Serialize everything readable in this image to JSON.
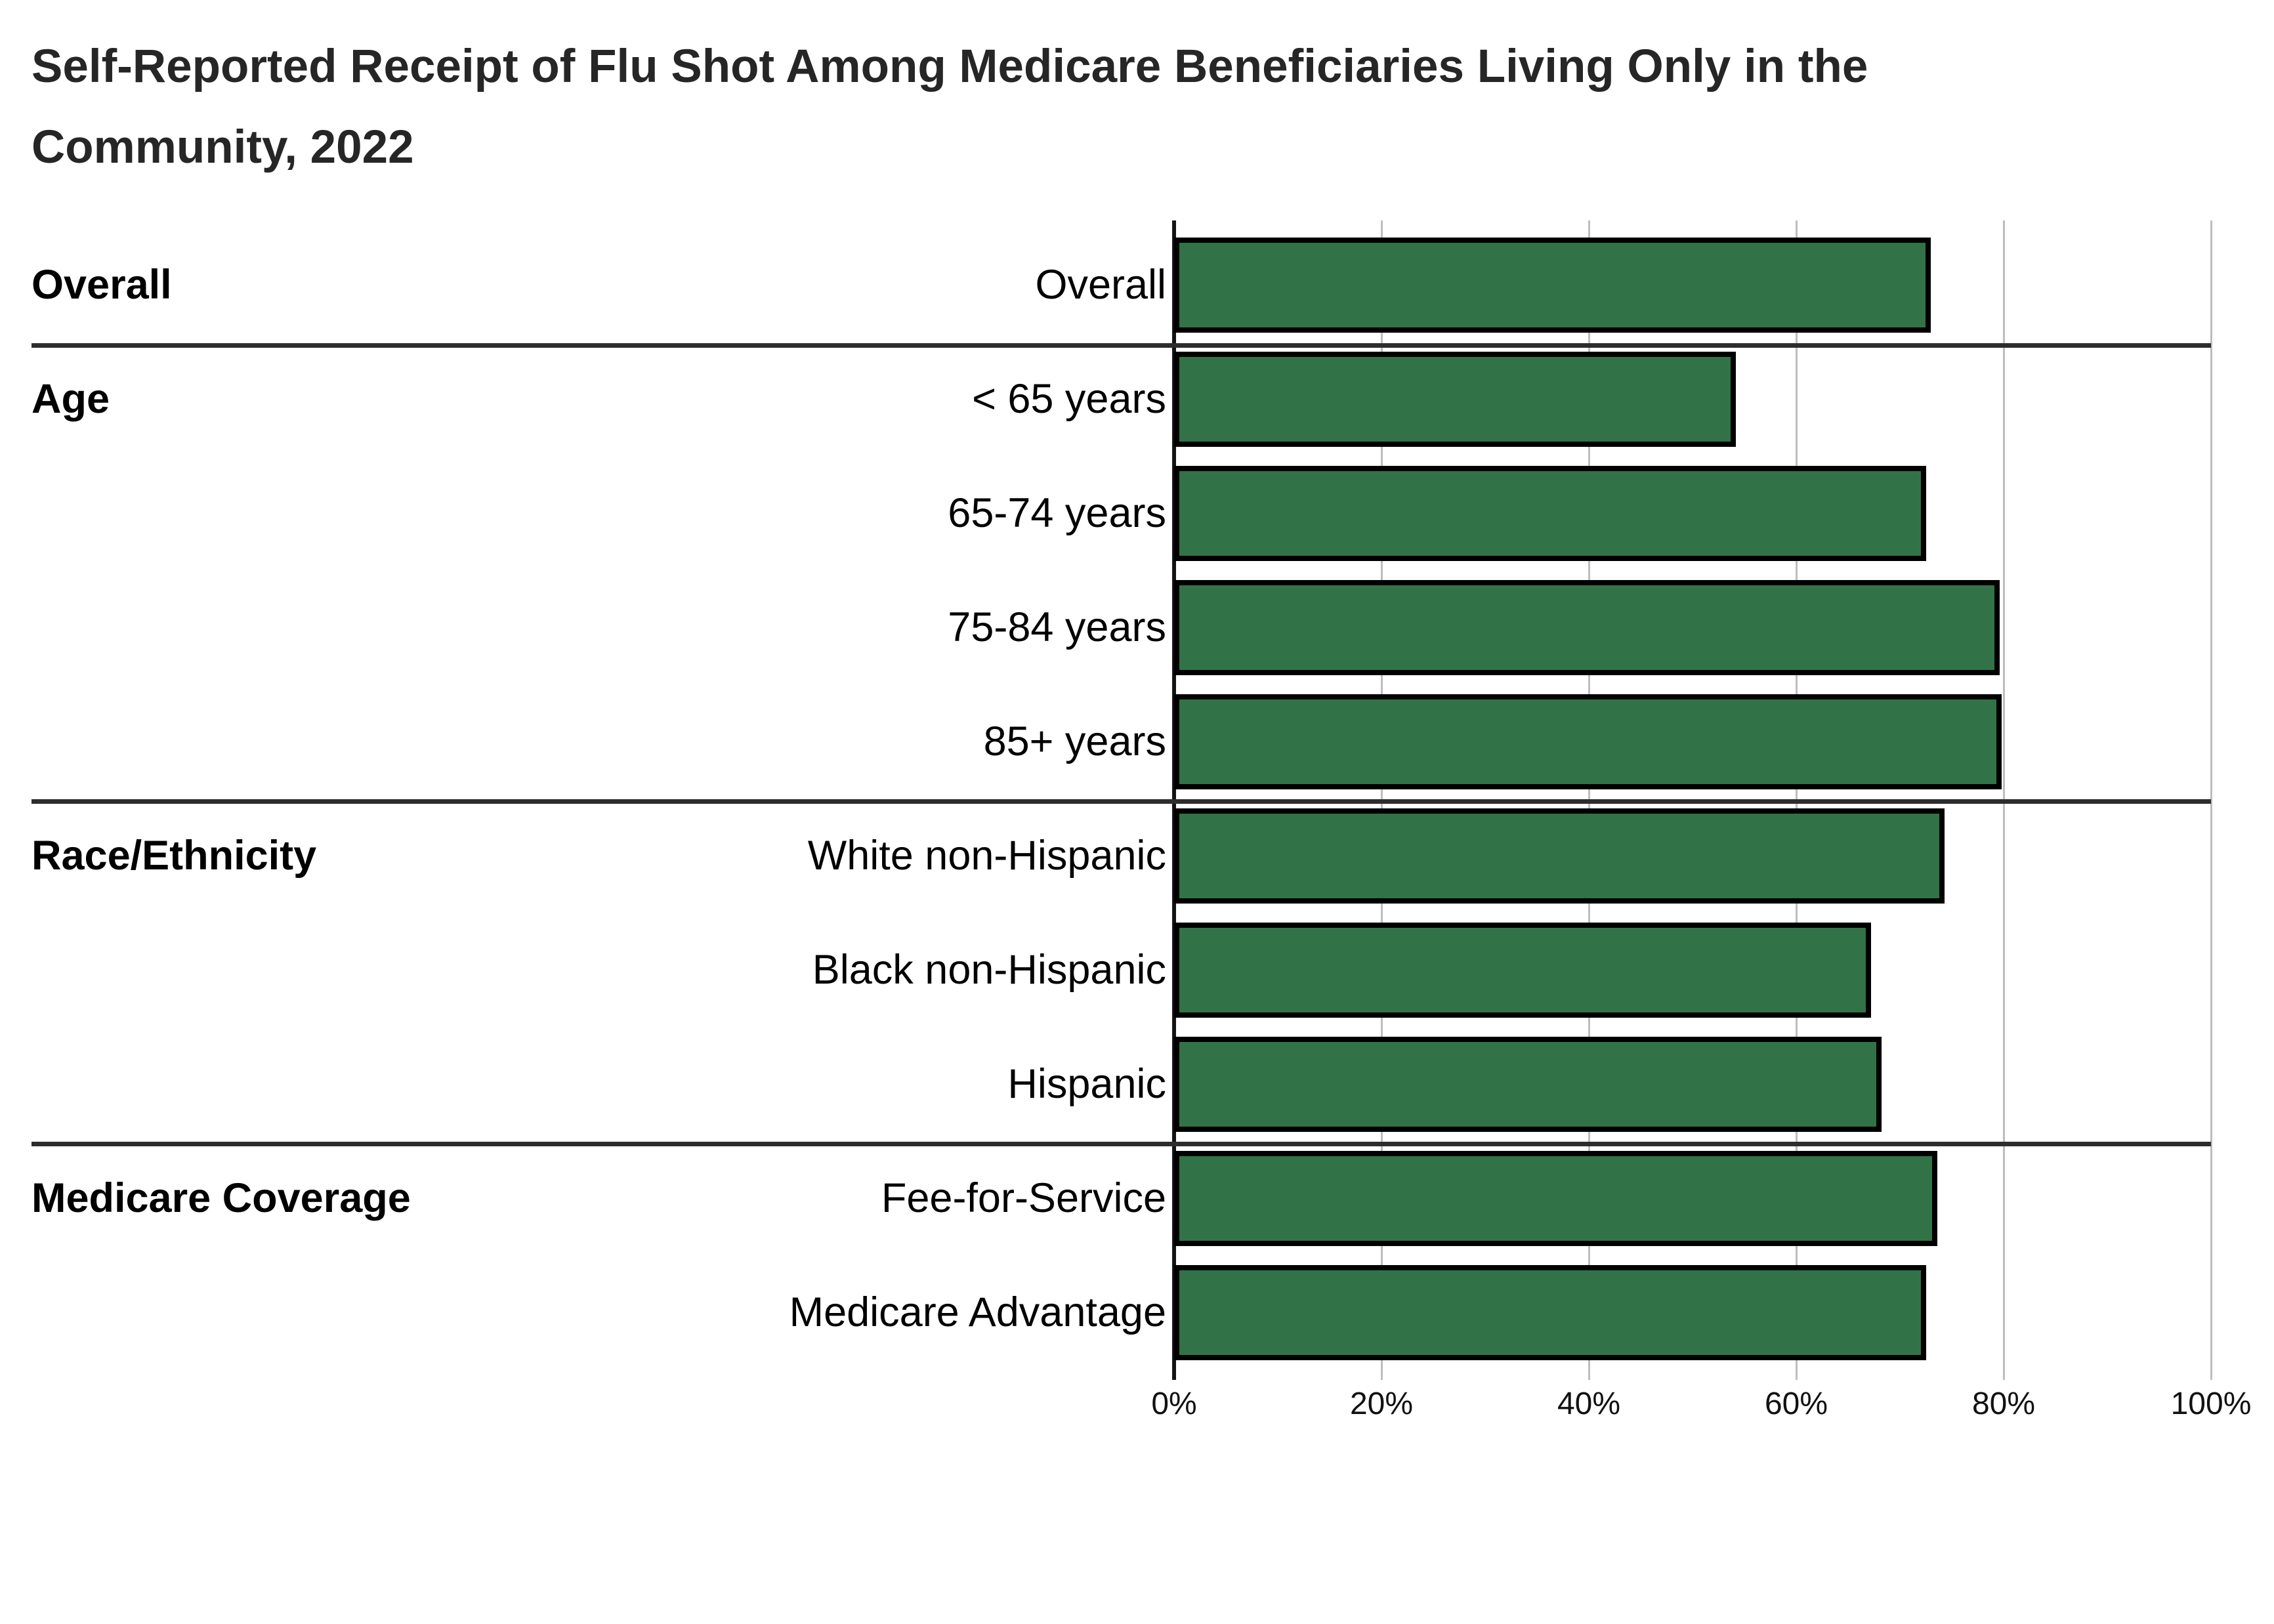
{
  "title": {
    "line1": "Self-Reported Receipt of Flu Shot Among Medicare Beneficiaries Living Only in the",
    "line2": "Community, 2022"
  },
  "chart_data": {
    "type": "bar",
    "orientation": "horizontal",
    "title": "Self-Reported Receipt of Flu Shot Among Medicare Beneficiaries Living Only in the Community, 2022",
    "unit": "%",
    "xlim": [
      0,
      100
    ],
    "grid": true,
    "x_ticks": [
      {
        "label": "0%",
        "value": 0
      },
      {
        "label": "20%",
        "value": 20
      },
      {
        "label": "40%",
        "value": 40
      },
      {
        "label": "60%",
        "value": 60
      },
      {
        "label": "80%",
        "value": 80
      },
      {
        "label": "100%",
        "value": 100
      }
    ],
    "groups": [
      {
        "label": "Overall",
        "items": [
          {
            "label": "Overall",
            "value": 73.0
          }
        ]
      },
      {
        "label": "Age",
        "items": [
          {
            "label": "< 65 years",
            "value": 54.2
          },
          {
            "label": "65-74 years",
            "value": 72.5
          },
          {
            "label": "75-84 years",
            "value": 79.6
          },
          {
            "label": "85+ years",
            "value": 79.8
          }
        ]
      },
      {
        "label": "Race/Ethnicity",
        "items": [
          {
            "label": "White non-Hispanic",
            "value": 74.3
          },
          {
            "label": "Black non-Hispanic",
            "value": 67.2
          },
          {
            "label": "Hispanic",
            "value": 68.2
          }
        ]
      },
      {
        "label": "Medicare Coverage",
        "items": [
          {
            "label": "Fee-for-Service",
            "value": 73.6
          },
          {
            "label": "Medicare Advantage",
            "value": 72.5
          }
        ]
      }
    ],
    "colors": {
      "bar_fill": "#317347",
      "bar_border": "#000000",
      "gridline": "#bdbdbd",
      "axis": "#141414",
      "separator": "#2d2d2d",
      "label_text": "#000000",
      "tick_text": "#111111",
      "title_text": "#262626"
    }
  }
}
